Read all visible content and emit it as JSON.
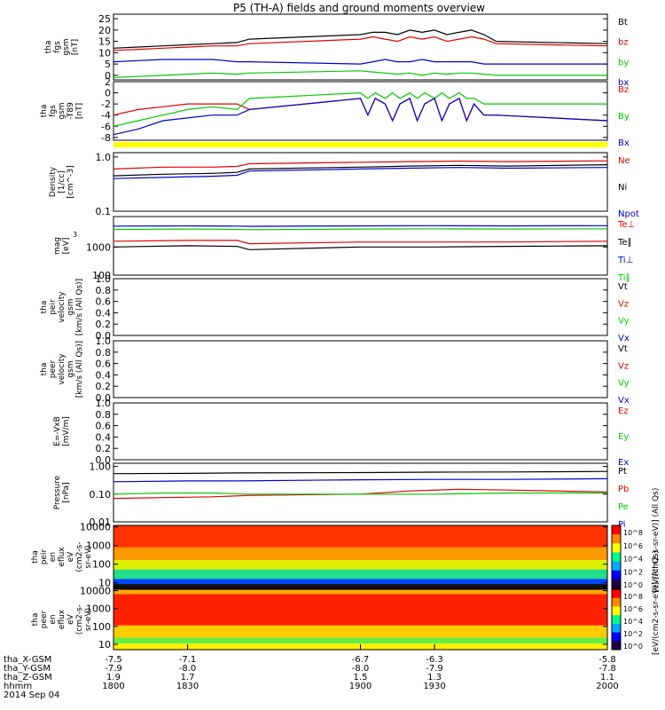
{
  "page": {
    "title": "P5 (TH-A) fields and ground moments overview"
  },
  "colors": {
    "black": "#000000",
    "red": "#e00000",
    "green": "#00cc00",
    "blue": "#0000cc",
    "yellow": "#ffff00"
  },
  "chart_data": [
    {
      "id": "fgs_gsm",
      "type": "line",
      "ylabel": [
        "tha",
        "fgs",
        "gsm",
        "[nT]"
      ],
      "ylim": [
        -2,
        27
      ],
      "yticks": [
        0,
        5,
        10,
        15,
        20,
        25
      ],
      "yticklabels": [
        "0",
        "5",
        "10",
        "15",
        "20",
        "25"
      ],
      "series": [
        {
          "name": "Bt",
          "color": "#000000",
          "x": [
            1800,
            1810,
            1820,
            1830,
            1840,
            1850,
            1855,
            1900,
            1905,
            1910,
            1915,
            1920,
            1925,
            1930,
            1935,
            1940,
            1945,
            1950,
            1955,
            2000
          ],
          "y": [
            12,
            12.5,
            13,
            13.5,
            14,
            14.5,
            16,
            18,
            19,
            19,
            18,
            20,
            19,
            20,
            18,
            19,
            20,
            18,
            15,
            14
          ]
        },
        {
          "name": "bz",
          "color": "#e00000",
          "x": [
            1800,
            1810,
            1820,
            1830,
            1840,
            1850,
            1855,
            1900,
            1905,
            1910,
            1915,
            1920,
            1925,
            1930,
            1935,
            1940,
            1945,
            1950,
            1955,
            2000
          ],
          "y": [
            11,
            11.5,
            12,
            12.5,
            13,
            13,
            14,
            16,
            17,
            16,
            15,
            17,
            16,
            17,
            15,
            16,
            17,
            16,
            14,
            13
          ]
        },
        {
          "name": "by",
          "color": "#00cc00",
          "x": [
            1800,
            1810,
            1820,
            1830,
            1840,
            1850,
            1855,
            1900,
            1905,
            1910,
            1915,
            1920,
            1925,
            1930,
            1935,
            1940,
            1945,
            1950,
            1955,
            2000
          ],
          "y": [
            -1,
            -0.5,
            0,
            0.5,
            1,
            0.5,
            1,
            2,
            1.5,
            1,
            0.5,
            1,
            0,
            1,
            0.5,
            1,
            1,
            0.5,
            0,
            0
          ]
        },
        {
          "name": "bx",
          "color": "#0000cc",
          "x": [
            1800,
            1810,
            1820,
            1830,
            1840,
            1850,
            1855,
            1900,
            1905,
            1910,
            1915,
            1920,
            1925,
            1930,
            1935,
            1940,
            1945,
            1950,
            1955,
            2000
          ],
          "y": [
            6,
            6.5,
            7,
            7,
            7,
            6,
            6,
            5,
            6,
            7,
            6,
            6,
            7,
            6,
            6,
            6,
            6,
            5,
            5,
            5
          ]
        }
      ]
    },
    {
      "id": "fgs_gsm_t89",
      "type": "line",
      "ylabel": [
        "tha",
        "fgs",
        "gsm",
        "-T89",
        "[nT]"
      ],
      "ylim": [
        -8.5,
        2
      ],
      "yticks": [
        2,
        0,
        -2,
        -4,
        -6,
        -8
      ],
      "yticklabels": [
        "2",
        "0",
        "-2",
        "-4",
        "-6",
        "-8"
      ],
      "series": [
        {
          "name": "Bz",
          "color": "#e00000",
          "x": [
            1800,
            1810,
            1820,
            1830,
            1840,
            1850,
            1855,
            1900,
            1903,
            1906,
            1910,
            1913,
            1916,
            1920,
            1923,
            1926,
            1930,
            1933,
            1936,
            1940,
            1943,
            1946,
            1950,
            1955,
            2000
          ],
          "y": [
            -4,
            -3,
            -2.5,
            -2,
            -2,
            -2,
            -3,
            -1,
            -4,
            -1,
            -2,
            -5,
            -2,
            -1,
            -5,
            -2,
            -1,
            -5,
            -2,
            -1,
            -5,
            -2,
            -4,
            -4,
            -5
          ]
        },
        {
          "name": "By",
          "color": "#00cc00",
          "x": [
            1800,
            1810,
            1820,
            1830,
            1840,
            1850,
            1855,
            1900,
            1903,
            1906,
            1910,
            1913,
            1916,
            1920,
            1923,
            1926,
            1930,
            1933,
            1936,
            1940,
            1943,
            1946,
            1950,
            1955,
            2000
          ],
          "y": [
            -6,
            -5,
            -4,
            -3,
            -2.5,
            -3,
            -1,
            0,
            -1,
            0,
            -1,
            0,
            -1,
            0,
            -1,
            0,
            -1,
            0,
            -1,
            0,
            -1,
            -1,
            -2,
            -2,
            -2
          ]
        },
        {
          "name": "Bx",
          "color": "#0000cc",
          "x": [
            1800,
            1810,
            1820,
            1830,
            1840,
            1850,
            1855,
            1900,
            1903,
            1906,
            1910,
            1913,
            1916,
            1920,
            1923,
            1926,
            1930,
            1933,
            1936,
            1940,
            1943,
            1946,
            1950,
            1955,
            2000
          ],
          "y": [
            -7.5,
            -6.5,
            -5,
            -4.5,
            -4,
            -4,
            -3,
            -1,
            -4,
            -1,
            -2,
            -5,
            -2,
            -1,
            -5,
            -2,
            -1,
            -5,
            -2,
            -1,
            -5,
            -2,
            -4,
            -4,
            -5
          ]
        }
      ]
    },
    {
      "id": "density",
      "type": "line",
      "scale": "log",
      "ylabel": [
        "Density",
        "[1/cc]",
        "[cm^-3]"
      ],
      "ylim": [
        0.1,
        1.2
      ],
      "yticks": [
        1.0,
        0.1
      ],
      "yticklabels": [
        "1.0",
        "0.1"
      ],
      "series": [
        {
          "name": "Ne",
          "color": "#e00000",
          "x": [
            1800,
            1820,
            1840,
            1850,
            1855,
            1900,
            1920,
            1940,
            1960,
            2000
          ],
          "y": [
            0.6,
            0.65,
            0.65,
            0.67,
            0.75,
            0.8,
            0.82,
            0.84,
            0.82,
            0.85
          ]
        },
        {
          "name": "Ni",
          "color": "#000000",
          "x": [
            1800,
            1820,
            1840,
            1850,
            1855,
            1900,
            1920,
            1940,
            1960,
            2000
          ],
          "y": [
            0.45,
            0.48,
            0.5,
            0.52,
            0.6,
            0.65,
            0.68,
            0.7,
            0.68,
            0.72
          ]
        },
        {
          "name": "Npot",
          "color": "#0000cc",
          "x": [
            1800,
            1820,
            1840,
            1850,
            1855,
            1900,
            1920,
            1940,
            1960,
            2000
          ],
          "y": [
            0.4,
            0.42,
            0.44,
            0.46,
            0.55,
            0.6,
            0.62,
            0.64,
            0.62,
            0.64
          ]
        }
      ]
    },
    {
      "id": "temperature",
      "type": "line",
      "scale": "log",
      "ylabel": [
        "mag",
        "[eV]"
      ],
      "ylabel_extra": "3",
      "ylim": [
        100,
        12000
      ],
      "yticks": [
        1000,
        100
      ],
      "yticklabels": [
        "1000",
        "100"
      ],
      "series": [
        {
          "name": "Te⊥",
          "color": "#e00000",
          "x": [
            1800,
            1830,
            1850,
            1855,
            1900,
            1930,
            1960,
            2000
          ],
          "y": [
            1600,
            1700,
            1700,
            1300,
            1500,
            1500,
            1500,
            1600
          ]
        },
        {
          "name": "Te∥",
          "color": "#000000",
          "x": [
            1800,
            1830,
            1850,
            1855,
            1900,
            1930,
            1960,
            2000
          ],
          "y": [
            1000,
            1100,
            1050,
            800,
            1000,
            1000,
            1050,
            1100
          ]
        },
        {
          "name": "Ti⊥",
          "color": "#0000cc",
          "x": [
            1800,
            1830,
            1850,
            1855,
            1900,
            1930,
            1960,
            2000
          ],
          "y": [
            5500,
            5600,
            5500,
            5400,
            5600,
            5700,
            5600,
            5700
          ]
        },
        {
          "name": "Ti∥",
          "color": "#00cc00",
          "x": [
            1800,
            1830,
            1850,
            1855,
            1900,
            1930,
            1960,
            2000
          ],
          "y": [
            4200,
            4300,
            4200,
            4100,
            4300,
            4400,
            4300,
            4400
          ]
        }
      ]
    },
    {
      "id": "peir_velocity",
      "type": "line",
      "ylabel": [
        "tha",
        "peir",
        "velocity",
        "gsm",
        "[km/s (All Qs)]"
      ],
      "ylim": [
        0,
        1
      ],
      "yticks": [
        0,
        0.2,
        0.4,
        0.6,
        0.8,
        1.0
      ],
      "yticklabels": [
        "0.0",
        "0.2",
        "0.4",
        "0.6",
        "0.8",
        "1.0"
      ],
      "series": [
        {
          "name": "Vt",
          "color": "#000000",
          "x": [],
          "y": []
        },
        {
          "name": "Vz",
          "color": "#e00000",
          "x": [],
          "y": []
        },
        {
          "name": "Vy",
          "color": "#00cc00",
          "x": [],
          "y": []
        },
        {
          "name": "Vx",
          "color": "#0000cc",
          "x": [],
          "y": []
        }
      ]
    },
    {
      "id": "peer_velocity",
      "type": "line",
      "ylabel": [
        "tha",
        "peer",
        "velocity",
        "gsm",
        "[km/s (All Qs)]"
      ],
      "ylim": [
        0,
        1
      ],
      "yticks": [
        0,
        0.2,
        0.4,
        0.6,
        0.8,
        1.0
      ],
      "yticklabels": [
        "0.0",
        "0.2",
        "0.4",
        "0.6",
        "0.8",
        "1.0"
      ],
      "series": [
        {
          "name": "Vt",
          "color": "#000000",
          "x": [],
          "y": []
        },
        {
          "name": "Vz",
          "color": "#e00000",
          "x": [],
          "y": []
        },
        {
          "name": "Vy",
          "color": "#00cc00",
          "x": [],
          "y": []
        },
        {
          "name": "Vx",
          "color": "#0000cc",
          "x": [],
          "y": []
        }
      ]
    },
    {
      "id": "efield",
      "type": "line",
      "ylabel": [
        "E=-VxB",
        "[mV/m]"
      ],
      "ylim": [
        0,
        1
      ],
      "yticks": [
        0,
        0.2,
        0.4,
        0.6,
        0.8,
        1.0
      ],
      "yticklabels": [
        "0.0",
        "0.2",
        "0.4",
        "0.6",
        "0.8",
        "1.0"
      ],
      "series": [
        {
          "name": "Ez",
          "color": "#e00000",
          "x": [],
          "y": []
        },
        {
          "name": "Ey",
          "color": "#00cc00",
          "x": [],
          "y": []
        },
        {
          "name": "Ex",
          "color": "#0000cc",
          "x": [],
          "y": []
        }
      ]
    },
    {
      "id": "pressure",
      "type": "line",
      "scale": "log",
      "ylabel": [
        "Pressure",
        "[nPa]"
      ],
      "ylim": [
        0.01,
        1.3
      ],
      "yticks": [
        1.0,
        0.1,
        0.01
      ],
      "yticklabels": [
        "1.00",
        "0.10",
        "0.01"
      ],
      "series": [
        {
          "name": "Pt",
          "color": "#000000",
          "x": [
            1800,
            1830,
            1850,
            1900,
            1930,
            1960,
            2000
          ],
          "y": [
            0.55,
            0.56,
            0.58,
            0.6,
            0.62,
            0.63,
            0.66
          ]
        },
        {
          "name": "Pb",
          "color": "#e00000",
          "x": [
            1800,
            1820,
            1840,
            1855,
            1900,
            1920,
            1940,
            1960,
            2000
          ],
          "y": [
            0.07,
            0.075,
            0.08,
            0.09,
            0.1,
            0.13,
            0.15,
            0.14,
            0.12
          ]
        },
        {
          "name": "Pe",
          "color": "#00cc00",
          "x": [
            1800,
            1820,
            1840,
            1855,
            1900,
            1930,
            1960,
            2000
          ],
          "y": [
            0.1,
            0.11,
            0.11,
            0.1,
            0.1,
            0.1,
            0.11,
            0.11
          ]
        },
        {
          "name": "Pi",
          "color": "#0000cc",
          "x": [
            1800,
            1830,
            1850,
            1900,
            1930,
            1960,
            2000
          ],
          "y": [
            0.28,
            0.3,
            0.3,
            0.33,
            0.34,
            0.34,
            0.36
          ]
        }
      ]
    },
    {
      "id": "peir_spectrogram",
      "type": "heatmap",
      "ylabel": [
        "tha",
        "peir",
        "en",
        "eflux",
        "eV",
        "(cm2-s-",
        "sr-eV)"
      ],
      "ylim": [
        5,
        12000
      ],
      "scale": "log",
      "yticks": [
        10000,
        1000,
        100,
        10
      ],
      "yticklabels": [
        "10000",
        "1000",
        "100",
        "10"
      ],
      "colorbar": {
        "label": "[eV/(cm2-s-sr-eV)] (All Qs)",
        "ticks": [
          "10^8",
          "10^6",
          "10^4",
          "10^2",
          "10^0"
        ]
      }
    },
    {
      "id": "peer_spectrogram",
      "type": "heatmap",
      "ylabel": [
        "tha",
        "peer",
        "en",
        "eflux",
        "eV",
        "(cm2-s-",
        "sr-eV)"
      ],
      "ylim": [
        5,
        12000
      ],
      "scale": "log",
      "yticks": [
        10000,
        1000,
        100,
        10
      ],
      "yticklabels": [
        "10000",
        "1000",
        "100",
        "10"
      ],
      "colorbar": {
        "label": "[eV/(cm2-s-sr-eV)] (All Qs)",
        "ticks": [
          "10^8",
          "10^6",
          "10^4",
          "10^2",
          "10^0"
        ]
      }
    }
  ],
  "x_axis": {
    "xlim": [
      1800,
      2000
    ],
    "tick_x": [
      1800,
      1830,
      1900,
      1930,
      2000
    ],
    "rows": [
      {
        "label": "tha_X-GSM",
        "values": [
          "-7.5",
          "-7.1",
          "-6.7",
          "-6.3",
          "-5.8"
        ]
      },
      {
        "label": "tha_Y-GSM",
        "values": [
          "-7.9",
          "-8.0",
          "-8.0",
          "-7.9",
          "-7.8"
        ]
      },
      {
        "label": "tha_Z-GSM",
        "values": [
          "1.9",
          "1.7",
          "1.5",
          "1.3",
          "1.1"
        ]
      },
      {
        "label": "hhmm",
        "values": [
          "1800",
          "1830",
          "1900",
          "1930",
          "2000"
        ]
      }
    ],
    "date": "2014 Sep 04"
  }
}
